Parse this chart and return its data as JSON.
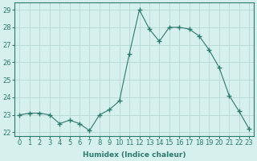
{
  "x": [
    0,
    1,
    2,
    3,
    4,
    5,
    6,
    7,
    8,
    9,
    10,
    11,
    12,
    13,
    14,
    15,
    16,
    17,
    18,
    19,
    20,
    21,
    22,
    23
  ],
  "y": [
    23.0,
    23.1,
    23.1,
    23.0,
    22.5,
    22.7,
    22.5,
    22.1,
    23.0,
    23.3,
    23.8,
    26.5,
    29.0,
    27.9,
    27.2,
    28.0,
    28.0,
    27.9,
    27.5,
    26.7,
    25.7,
    24.1,
    23.2,
    22.2
  ],
  "line_color": "#2d7a6e",
  "marker": "+",
  "markersize": 4,
  "bg_color": "#d6f0ee",
  "grid_color": "#b8d8d4",
  "xlabel": "Humidex (Indice chaleur)",
  "xlim": [
    -0.5,
    23.5
  ],
  "ylim": [
    21.8,
    29.4
  ],
  "yticks": [
    22,
    23,
    24,
    25,
    26,
    27,
    28,
    29
  ],
  "xtick_labels": [
    "0",
    "1",
    "2",
    "3",
    "4",
    "5",
    "6",
    "7",
    "8",
    "9",
    "10",
    "11",
    "12",
    "13",
    "14",
    "15",
    "16",
    "17",
    "18",
    "19",
    "20",
    "21",
    "22",
    "23"
  ],
  "xlabel_fontsize": 6.5,
  "tick_fontsize": 6.0
}
